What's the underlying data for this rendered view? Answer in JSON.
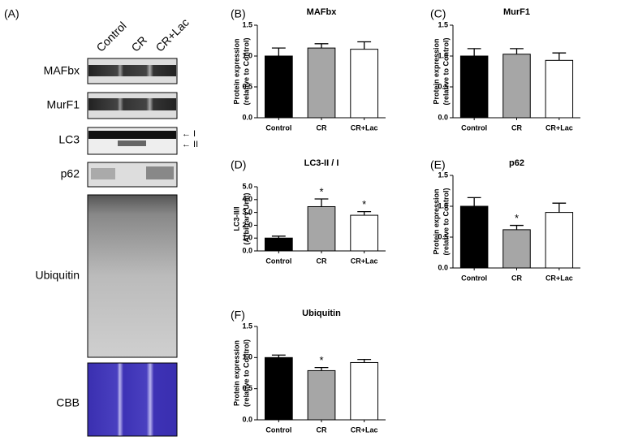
{
  "blot": {
    "panel": "(A)",
    "columns": [
      "Control",
      "CR",
      "CR+Lac"
    ],
    "rows": [
      "MAFbx",
      "MurF1",
      "LC3",
      "p62",
      "Ubiquitin",
      "CBB"
    ],
    "lc3_bands": [
      "← I",
      "← II"
    ]
  },
  "chart_data": [
    {
      "type": "bar",
      "panel": "(B)",
      "title": "MAFbx",
      "ylabel": [
        "Protein expression",
        "(relative to Control)"
      ],
      "categories": [
        "Control",
        "CR",
        "CR+Lac"
      ],
      "values": [
        1.0,
        1.13,
        1.11
      ],
      "errors": [
        0.13,
        0.07,
        0.12
      ],
      "colors": [
        "#000000",
        "#a6a6a6",
        "#ffffff"
      ],
      "ylim": [
        0,
        1.5
      ],
      "yticks": [
        {
          "value": 0,
          "label": "0.0"
        },
        {
          "value": 0.5,
          "label": "0.5"
        },
        {
          "value": 1,
          "label": "1.0"
        },
        {
          "value": 1.5,
          "label": "1.5"
        }
      ]
    },
    {
      "type": "bar",
      "panel": "(C)",
      "title": "MurF1",
      "ylabel": [
        "Protein expression",
        "(relative to Control)"
      ],
      "categories": [
        "Control",
        "CR",
        "CR+Lac"
      ],
      "values": [
        1.0,
        1.03,
        0.93
      ],
      "errors": [
        0.12,
        0.09,
        0.12
      ],
      "colors": [
        "#000000",
        "#a6a6a6",
        "#ffffff"
      ],
      "ylim": [
        0,
        1.5
      ],
      "yticks": [
        {
          "value": 0,
          "label": "0.0"
        },
        {
          "value": 0.5,
          "label": "0.5"
        },
        {
          "value": 1,
          "label": "1.0"
        },
        {
          "value": 1.5,
          "label": "1.5"
        }
      ]
    },
    {
      "type": "bar",
      "panel": "(D)",
      "title": "LC3-II / I",
      "ylabel": [
        "LC3-II/I",
        "(Arbitrary Unit)"
      ],
      "categories": [
        "Control",
        "CR",
        "CR+Lac"
      ],
      "values": [
        1.0,
        3.45,
        2.78
      ],
      "errors": [
        0.15,
        0.6,
        0.28
      ],
      "colors": [
        "#000000",
        "#a6a6a6",
        "#ffffff"
      ],
      "annotations": [
        {
          "category": "CR",
          "text": "*"
        },
        {
          "category": "CR+Lac",
          "text": "*"
        }
      ],
      "ylim": [
        0,
        5
      ],
      "yticks": [
        {
          "value": 0,
          "label": "0.0"
        },
        {
          "value": 1,
          "label": "1.0"
        },
        {
          "value": 2,
          "label": "2.0"
        },
        {
          "value": 3,
          "label": "3.0"
        },
        {
          "value": 4,
          "label": "4.0"
        },
        {
          "value": 5,
          "label": "5.0"
        }
      ]
    },
    {
      "type": "bar",
      "panel": "(E)",
      "title": "p62",
      "ylabel": [
        "Protein expression",
        "(relative to Control)"
      ],
      "categories": [
        "Control",
        "CR",
        "CR+Lac"
      ],
      "values": [
        1.0,
        0.62,
        0.9
      ],
      "errors": [
        0.14,
        0.07,
        0.15
      ],
      "colors": [
        "#000000",
        "#a6a6a6",
        "#ffffff"
      ],
      "annotations": [
        {
          "category": "CR",
          "text": "*"
        }
      ],
      "ylim": [
        0,
        1.5
      ],
      "yticks": [
        {
          "value": 0,
          "label": "0.0"
        },
        {
          "value": 0.5,
          "label": "0.5"
        },
        {
          "value": 1,
          "label": "1.0"
        },
        {
          "value": 1.5,
          "label": "1.5"
        }
      ]
    },
    {
      "type": "bar",
      "panel": "(F)",
      "title": "Ubiquitin",
      "ylabel": [
        "Protein expression",
        "(relative to Control)"
      ],
      "categories": [
        "Control",
        "CR",
        "CR+Lac"
      ],
      "values": [
        1.0,
        0.79,
        0.92
      ],
      "errors": [
        0.04,
        0.05,
        0.05
      ],
      "colors": [
        "#000000",
        "#a6a6a6",
        "#ffffff"
      ],
      "annotations": [
        {
          "category": "CR",
          "text": "*"
        }
      ],
      "ylim": [
        0,
        1.5
      ],
      "yticks": [
        {
          "value": 0,
          "label": "0.0"
        },
        {
          "value": 0.5,
          "label": "0.5"
        },
        {
          "value": 1,
          "label": "1.0"
        },
        {
          "value": 1.5,
          "label": "1.5"
        }
      ]
    }
  ]
}
